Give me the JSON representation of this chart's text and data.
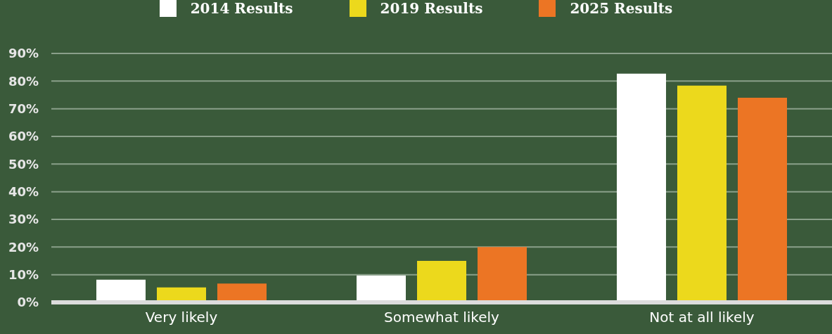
{
  "chart_data": {
    "type": "bar",
    "categories": [
      "Very likely",
      "Somewhat likely",
      "Not at all likely"
    ],
    "series": [
      {
        "name": "2014 Results",
        "color": "#ffffff",
        "values": [
          8.2,
          9.7,
          82.7
        ]
      },
      {
        "name": "2019 Results",
        "color": "#ecd91c",
        "values": [
          5.4,
          15,
          78.4
        ]
      },
      {
        "name": "2025 Results",
        "color": "#ec7524",
        "values": [
          6.8,
          20,
          74
        ]
      }
    ],
    "ylim": [
      0,
      90
    ],
    "yticks": [
      {
        "value": 0,
        "label": "0%"
      },
      {
        "value": 10,
        "label": "10%"
      },
      {
        "value": 20,
        "label": "20%"
      },
      {
        "value": 30,
        "label": "30%"
      },
      {
        "value": 40,
        "label": "40%"
      },
      {
        "value": 50,
        "label": "50%"
      },
      {
        "value": 60,
        "label": "60%"
      },
      {
        "value": 70,
        "label": "70%"
      },
      {
        "value": 80,
        "label": "80%"
      },
      {
        "value": 90,
        "label": "90%"
      }
    ],
    "grid": "y",
    "legend": "top"
  }
}
